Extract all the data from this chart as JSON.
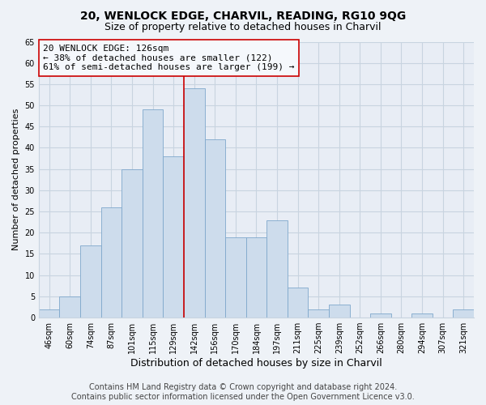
{
  "title": "20, WENLOCK EDGE, CHARVIL, READING, RG10 9QG",
  "subtitle": "Size of property relative to detached houses in Charvil",
  "xlabel": "Distribution of detached houses by size in Charvil",
  "ylabel": "Number of detached properties",
  "bar_labels": [
    "46sqm",
    "60sqm",
    "74sqm",
    "87sqm",
    "101sqm",
    "115sqm",
    "129sqm",
    "142sqm",
    "156sqm",
    "170sqm",
    "184sqm",
    "197sqm",
    "211sqm",
    "225sqm",
    "239sqm",
    "252sqm",
    "266sqm",
    "280sqm",
    "294sqm",
    "307sqm",
    "321sqm"
  ],
  "bar_values": [
    2,
    5,
    17,
    26,
    35,
    49,
    38,
    54,
    42,
    19,
    19,
    23,
    7,
    2,
    3,
    0,
    1,
    0,
    1,
    0,
    2
  ],
  "bar_color": "#cddcec",
  "bar_edgecolor": "#7fa8cc",
  "highlight_index": 6,
  "highlight_line_color": "#cc0000",
  "ylim": [
    0,
    65
  ],
  "yticks": [
    0,
    5,
    10,
    15,
    20,
    25,
    30,
    35,
    40,
    45,
    50,
    55,
    60,
    65
  ],
  "annotation_line1": "20 WENLOCK EDGE: 126sqm",
  "annotation_line2": "← 38% of detached houses are smaller (122)",
  "annotation_line3": "61% of semi-detached houses are larger (199) →",
  "annotation_box_edgecolor": "#cc0000",
  "annotation_box_facecolor": "#f5f8fc",
  "footer_line1": "Contains HM Land Registry data © Crown copyright and database right 2024.",
  "footer_line2": "Contains public sector information licensed under the Open Government Licence v3.0.",
  "background_color": "#eef2f7",
  "plot_bg_color": "#e8edf5",
  "grid_color": "#c8d4e0",
  "title_fontsize": 10,
  "subtitle_fontsize": 9,
  "xlabel_fontsize": 9,
  "ylabel_fontsize": 8,
  "tick_fontsize": 7,
  "annotation_fontsize": 8,
  "footer_fontsize": 7
}
